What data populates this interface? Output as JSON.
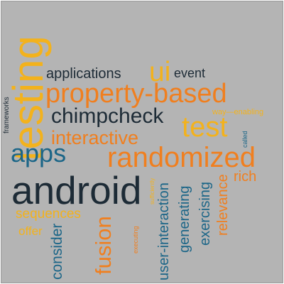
{
  "colors": {
    "background": "#b4b4b4",
    "orange": "#f07f1f",
    "yellow": "#f3b21c",
    "dark": "#1d2b36",
    "blue": "#1c6688",
    "navy": "#1f3f5a"
  },
  "words": {
    "testing": "testing",
    "applications": "applications",
    "ui": "ui",
    "event": "event",
    "property_based": "property-based",
    "frameworks": "frameworks",
    "chimpcheck": "chimpcheck",
    "test": "test",
    "way_enabling": "way—enabling",
    "called": "called",
    "interactive": "interactive",
    "apps": "apps",
    "randomized": "randomized",
    "rich": "rich",
    "android": "android",
    "sufficiently": "sufficiently",
    "sequences": "sequences",
    "executing": "executing",
    "offer": "offer",
    "consider": "consider",
    "fusion": "fusion",
    "user_interaction": "user-interaction",
    "generating": "generating",
    "exercising": "exercising",
    "relevance": "relevance"
  }
}
